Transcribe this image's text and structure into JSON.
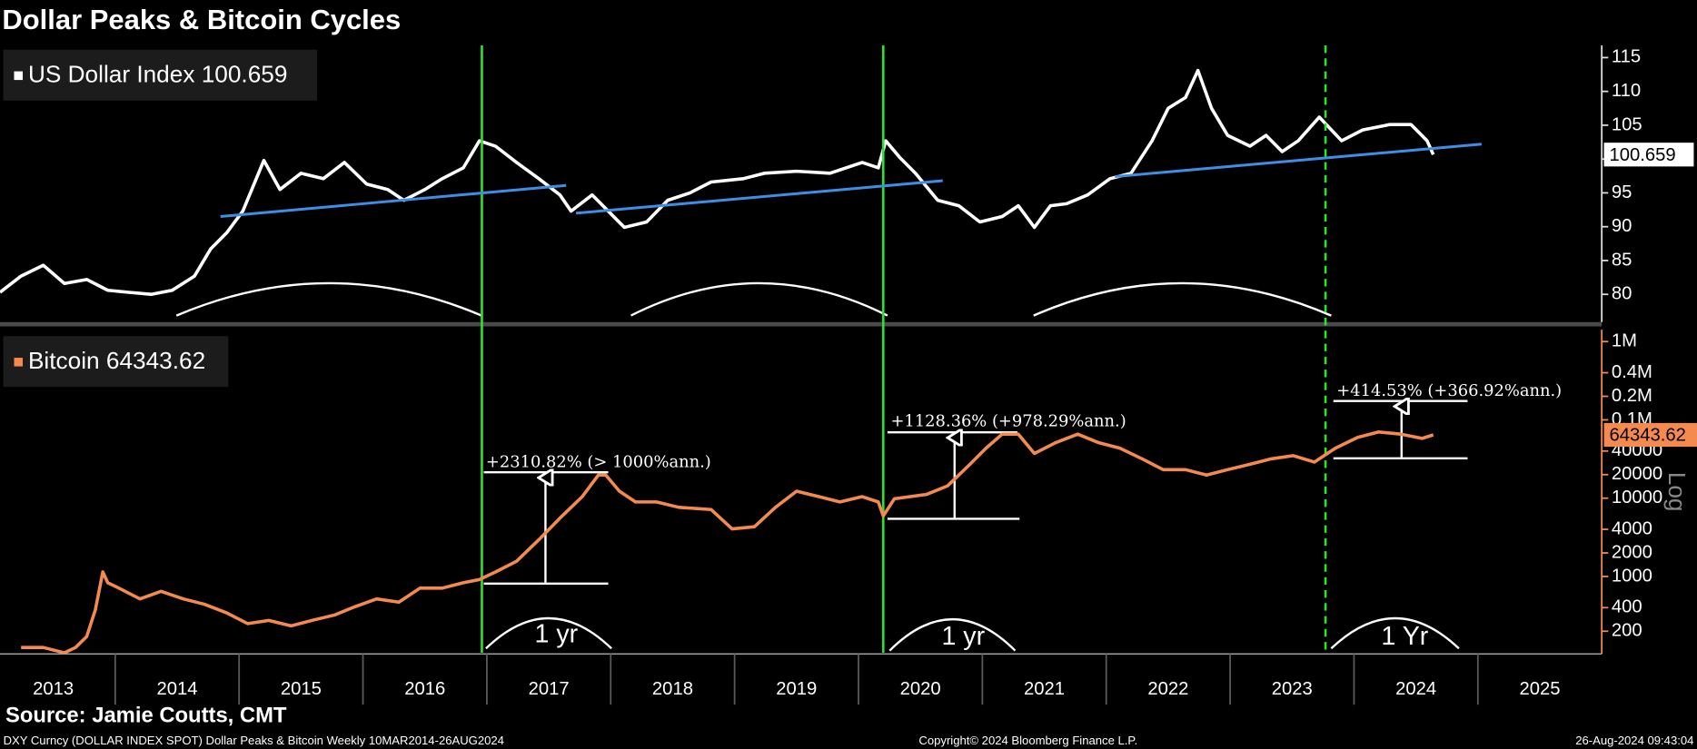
{
  "title": "Dollar Peaks & Bitcoin Cycles",
  "footer": {
    "source": "Source: Jamie Coutts, CMT",
    "description": "DXY Curncy (DOLLAR INDEX SPOT) Dollar Peaks & Bitcoin  Weekly 10MAR2014-26AUG2024",
    "copyright": "Copyright© 2024 Bloomberg Finance L.P.",
    "timestamp": "26-Aug-2024 09:43:04"
  },
  "chart_data": [
    {
      "type": "line",
      "xlim": [
        2013.07,
        2026.0
      ],
      "ylim": [
        75.9,
        116.8
      ],
      "yticks": [
        80,
        85,
        90,
        95,
        100,
        105,
        110,
        115
      ],
      "x": [
        2013.07,
        2013.24,
        2013.42,
        2013.59,
        2013.77,
        2013.94,
        2014.11,
        2014.29,
        2014.46,
        2014.64,
        2014.77,
        2014.9,
        2015.03,
        2015.2,
        2015.33,
        2015.5,
        2015.68,
        2015.85,
        2016.03,
        2016.2,
        2016.33,
        2016.5,
        2016.64,
        2016.81,
        2016.94,
        2017.07,
        2017.24,
        2017.42,
        2017.59,
        2017.68,
        2017.85,
        2017.98,
        2018.11,
        2018.29,
        2018.46,
        2018.64,
        2018.81,
        2019.07,
        2019.24,
        2019.5,
        2019.77,
        2020.03,
        2020.16,
        2020.22,
        2020.33,
        2020.46,
        2020.64,
        2020.81,
        2020.98,
        2021.16,
        2021.29,
        2021.42,
        2021.55,
        2021.68,
        2021.85,
        2022.03,
        2022.2,
        2022.37,
        2022.5,
        2022.64,
        2022.74,
        2022.85,
        2022.98,
        2023.16,
        2023.29,
        2023.42,
        2023.55,
        2023.72,
        2023.9,
        2024.07,
        2024.29,
        2024.46,
        2024.59,
        2024.64
      ],
      "series": [
        {
          "name": "US Dollar Index",
          "color": "#ffffff",
          "values": [
            80.3,
            82.7,
            84.3,
            81.6,
            82.2,
            80.6,
            80.3,
            80.0,
            80.6,
            82.7,
            86.7,
            89.1,
            92.3,
            99.8,
            95.5,
            97.9,
            97.1,
            99.5,
            96.3,
            95.5,
            93.9,
            95.5,
            97.1,
            98.7,
            102.7,
            101.9,
            99.5,
            97.1,
            94.7,
            92.3,
            94.7,
            92.3,
            89.9,
            90.7,
            93.9,
            95.0,
            96.6,
            97.1,
            97.9,
            98.2,
            97.9,
            99.5,
            98.7,
            102.7,
            100.3,
            97.9,
            93.9,
            93.1,
            90.7,
            91.5,
            93.1,
            89.9,
            93.1,
            93.4,
            94.7,
            97.1,
            97.9,
            102.7,
            107.5,
            109.1,
            113.1,
            107.5,
            103.5,
            101.9,
            103.5,
            101.1,
            102.7,
            106.2,
            102.7,
            104.3,
            105.1,
            105.1,
            102.7,
            100.659
          ]
        }
      ],
      "trend_color": "#3d8fe6",
      "trendlines": [
        {
          "x": [
            2014.85,
            2017.64
          ],
          "values": [
            91.5,
            96.1
          ]
        },
        {
          "x": [
            2017.72,
            2020.68
          ],
          "values": [
            92.0,
            96.8
          ]
        },
        {
          "x": [
            2022.07,
            2025.03
          ],
          "values": [
            97.4,
            102.2
          ]
        }
      ],
      "event_color": "#2fe02f",
      "events": [
        {
          "x": 2016.96,
          "style": "solid"
        },
        {
          "x": 2020.2,
          "style": "solid"
        },
        {
          "x": 2023.77,
          "style": "dashed"
        }
      ]
    },
    {
      "type": "line",
      "log": true,
      "y_scale_label": "Log",
      "xlim": [
        2013.07,
        2026.0
      ],
      "ylim": [
        106,
        1420000
      ],
      "xticks": [
        2013,
        2014,
        2015,
        2016,
        2017,
        2018,
        2019,
        2020,
        2021,
        2022,
        2023,
        2024,
        2025
      ],
      "yticks": [
        200,
        400,
        1000,
        2000,
        4000,
        10000,
        20000,
        40000,
        {
          "value": 100000,
          "label": "0.1M"
        },
        {
          "value": 200000,
          "label": "0.2M"
        },
        {
          "value": 400000,
          "label": "0.4M"
        },
        {
          "value": 1000000,
          "label": "1M"
        }
      ],
      "x": [
        2013.24,
        2013.42,
        2013.59,
        2013.68,
        2013.77,
        2013.84,
        2013.9,
        2013.94,
        2014.03,
        2014.2,
        2014.37,
        2014.55,
        2014.72,
        2014.9,
        2015.07,
        2015.24,
        2015.42,
        2015.59,
        2015.77,
        2015.94,
        2016.11,
        2016.29,
        2016.46,
        2016.64,
        2016.81,
        2016.94,
        2017.07,
        2017.24,
        2017.42,
        2017.59,
        2017.77,
        2017.9,
        2017.96,
        2018.07,
        2018.2,
        2018.37,
        2018.55,
        2018.81,
        2018.98,
        2019.16,
        2019.33,
        2019.5,
        2019.68,
        2019.85,
        2020.03,
        2020.16,
        2020.2,
        2020.29,
        2020.55,
        2020.72,
        2020.9,
        2021.03,
        2021.16,
        2021.29,
        2021.42,
        2021.59,
        2021.77,
        2021.94,
        2022.11,
        2022.29,
        2022.46,
        2022.64,
        2022.81,
        2022.98,
        2023.16,
        2023.33,
        2023.51,
        2023.68,
        2023.85,
        2024.03,
        2024.2,
        2024.37,
        2024.55,
        2024.64
      ],
      "series": [
        {
          "name": "Bitcoin",
          "color": "#f58a4e",
          "values": [
            124,
            124,
            106,
            124,
            171,
            377,
            1143,
            832,
            710,
            517,
            646,
            517,
            442,
            343,
            250,
            275,
            234,
            275,
            322,
            414,
            517,
            470,
            710,
            710,
            832,
            914,
            1143,
            1567,
            2951,
            5560,
            10470,
            19730,
            19730,
            12280,
            8950,
            8950,
            7640,
            7160,
            4050,
            4320,
            7640,
            12280,
            10470,
            8950,
            10470,
            8950,
            5930,
            9840,
            11170,
            14390,
            27100,
            43550,
            65770,
            65770,
            37240,
            51050,
            65770,
            51050,
            43550,
            31770,
            23140,
            23140,
            19730,
            23140,
            27100,
            31770,
            34900,
            28900,
            43550,
            59800,
            70100,
            66000,
            58000,
            64343.62
          ]
        }
      ],
      "annotations": [
        "+2310.82% (> 1000%ann.)",
        "+1128.36% (+978.29%ann.)",
        "+414.53% (+366.92%ann.)"
      ],
      "period_labels": [
        "1 yr",
        "1 yr",
        "1 Yr"
      ]
    }
  ]
}
